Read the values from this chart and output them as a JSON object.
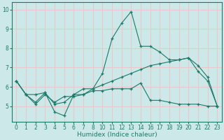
{
  "bg_color": "#cde8e8",
  "grid_color": "#e8c8c8",
  "line_color": "#1a7a6a",
  "xlabel": "Humidex (Indice chaleur)",
  "xlim": [
    -0.5,
    21.5
  ],
  "ylim": [
    4.2,
    10.4
  ],
  "yticks": [
    5,
    6,
    7,
    8,
    9,
    10
  ],
  "xtick_labels": [
    "0",
    "1",
    "2",
    "3",
    "4",
    "5",
    "6",
    "7",
    "8",
    "1011",
    "1213",
    "14",
    "1617",
    "1819",
    "2021",
    "2223"
  ],
  "xticklabels": [
    "0",
    "1",
    "2",
    "3",
    "4",
    "5",
    "6",
    "7",
    "8",
    "1011",
    "1213",
    "14",
    "1617",
    "1819",
    "2021",
    "2223"
  ],
  "tick_labels": [
    "0",
    "1",
    "2",
    "3",
    "4",
    "5",
    "6",
    "7",
    "8",
    "10",
    "11",
    "12",
    "13",
    "14",
    "16",
    "17",
    "18",
    "19",
    "20",
    "21",
    "22",
    "23"
  ],
  "line1_y": [
    6.3,
    5.6,
    5.6,
    5.7,
    4.7,
    4.5,
    5.6,
    5.9,
    5.9,
    6.7,
    8.5,
    9.3,
    9.9,
    8.1,
    8.1,
    7.8,
    7.4,
    7.4,
    7.5,
    6.8,
    6.3,
    5.0
  ],
  "line2_y": [
    6.3,
    5.6,
    5.1,
    5.6,
    5.2,
    5.5,
    5.5,
    5.6,
    5.8,
    5.8,
    5.9,
    5.9,
    5.9,
    6.2,
    5.3,
    5.3,
    5.2,
    5.1,
    5.1,
    5.1,
    5.0,
    5.0
  ],
  "line3_y": [
    6.3,
    5.6,
    5.2,
    5.7,
    5.1,
    5.2,
    5.6,
    5.6,
    5.9,
    6.1,
    6.3,
    6.5,
    6.7,
    6.9,
    7.1,
    7.2,
    7.3,
    7.4,
    7.5,
    7.1,
    6.5,
    5.0
  ]
}
